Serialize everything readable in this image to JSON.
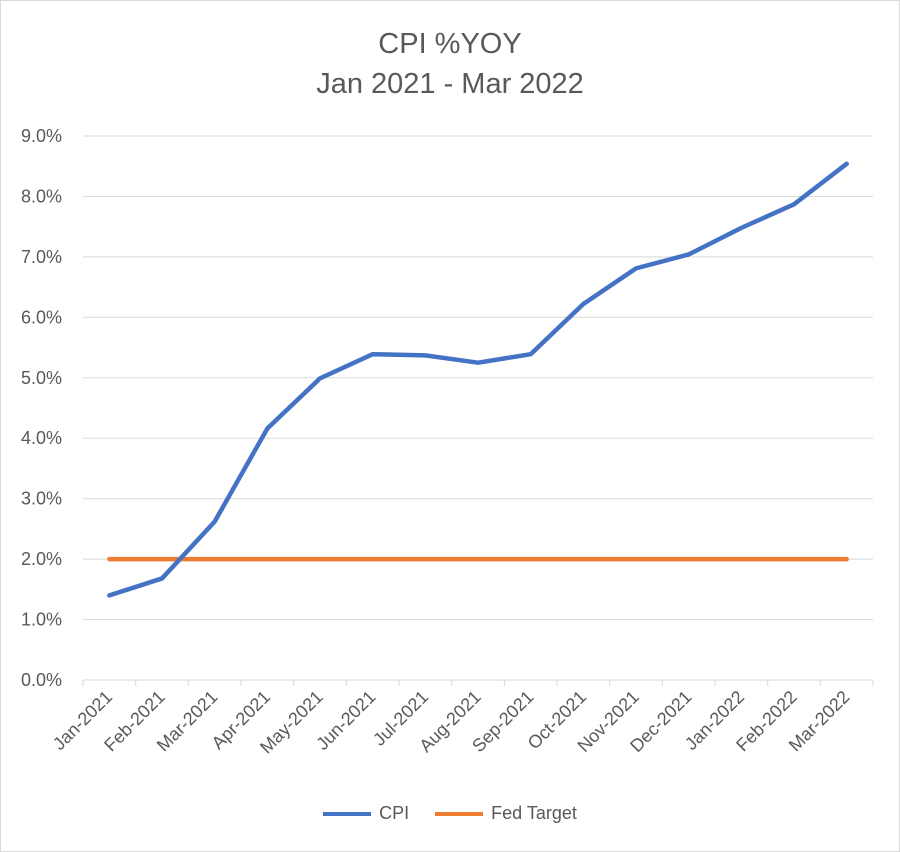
{
  "chart_data": {
    "type": "line",
    "title": "CPI %YOY",
    "subtitle": "Jan 2021 - Mar 2022",
    "categories": [
      "Jan-2021",
      "Feb-2021",
      "Mar-2021",
      "Apr-2021",
      "May-2021",
      "Jun-2021",
      "Jul-2021",
      "Aug-2021",
      "Sep-2021",
      "Oct-2021",
      "Nov-2021",
      "Dec-2021",
      "Jan-2022",
      "Feb-2022",
      "Mar-2022"
    ],
    "series": [
      {
        "name": "CPI",
        "color": "#4472c4",
        "values": [
          1.4,
          1.68,
          2.62,
          4.16,
          4.99,
          5.39,
          5.37,
          5.25,
          5.39,
          6.22,
          6.81,
          7.04,
          7.48,
          7.87,
          8.54
        ]
      },
      {
        "name": "Fed Target",
        "color": "#ed7d31",
        "values": [
          2.0,
          2.0,
          2.0,
          2.0,
          2.0,
          2.0,
          2.0,
          2.0,
          2.0,
          2.0,
          2.0,
          2.0,
          2.0,
          2.0,
          2.0
        ]
      }
    ],
    "y_ticks": [
      "0.0%",
      "1.0%",
      "2.0%",
      "3.0%",
      "4.0%",
      "5.0%",
      "6.0%",
      "7.0%",
      "8.0%",
      "9.0%"
    ],
    "ylim": [
      0,
      9
    ],
    "grid": true,
    "legend": "bottom",
    "xlabel": "",
    "ylabel": ""
  },
  "legend": {
    "items": [
      {
        "label": "CPI",
        "color": "#4472c4"
      },
      {
        "label": "Fed Target",
        "color": "#ed7d31"
      }
    ]
  }
}
